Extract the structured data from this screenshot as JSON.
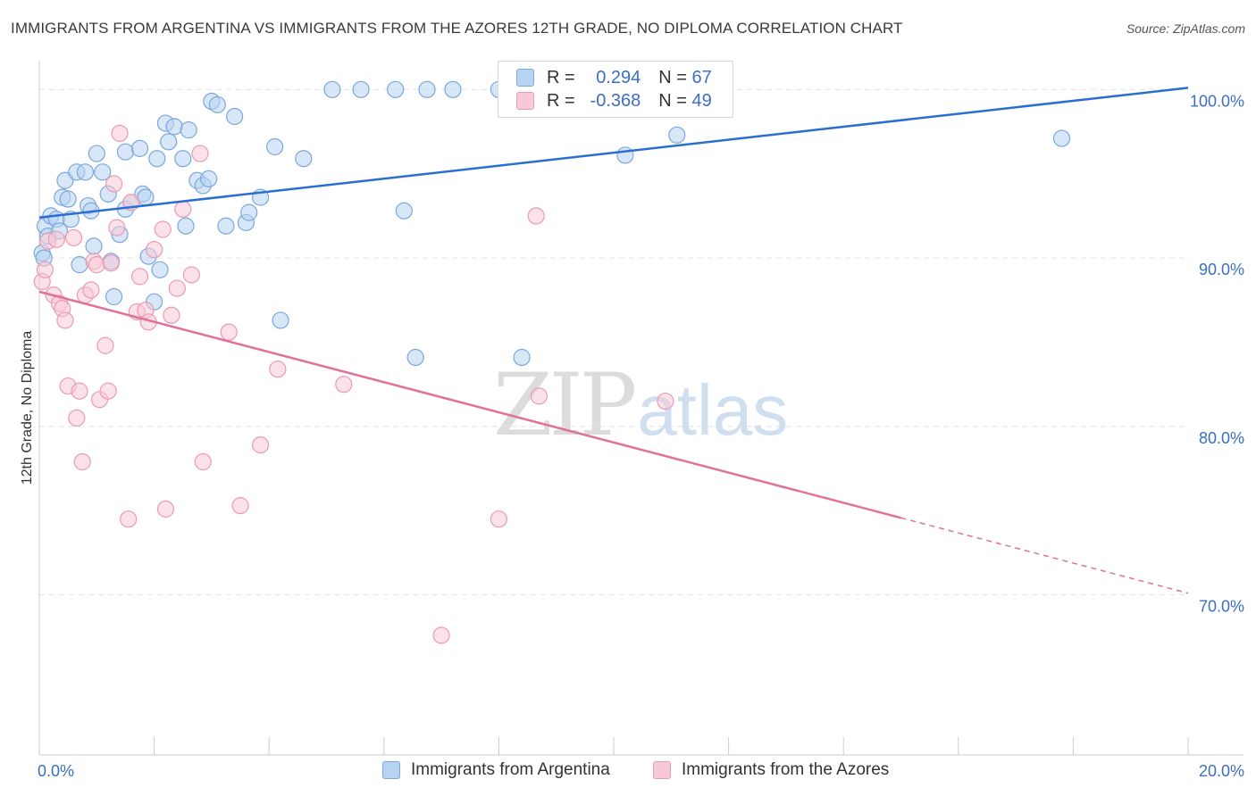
{
  "title": "IMMIGRANTS FROM ARGENTINA VS IMMIGRANTS FROM THE AZORES 12TH GRADE, NO DIPLOMA CORRELATION CHART",
  "source": "Source: ZipAtlas.com",
  "watermark": {
    "zip": "ZIP",
    "atlas": "atlas"
  },
  "legend": {
    "rows": [
      {
        "r_label": "R =",
        "r_value": "0.294",
        "n_label": "N =",
        "n_value": "67"
      },
      {
        "r_label": "R =",
        "r_value": "-0.368",
        "n_label": "N =",
        "n_value": "49"
      }
    ]
  },
  "colors": {
    "blue_fill": "#b8d3f2",
    "blue_stroke": "#7aa7dc",
    "blue_line": "#2a6fd0",
    "pink_fill": "#f8c8d6",
    "pink_stroke": "#eb9ab3",
    "pink_line": "#e0719a",
    "tick_label": "#3a6fc4",
    "grid": "#e2e2e2"
  },
  "chart_data": {
    "type": "scatter",
    "title": "IMMIGRANTS FROM ARGENTINA VS IMMIGRANTS FROM THE AZORES 12TH GRADE, NO DIPLOMA CORRELATION CHART",
    "xlabel": "",
    "ylabel": "12th Grade, No Diploma",
    "xlim": [
      0,
      20
    ],
    "ylim": [
      60.5,
      101.5
    ],
    "x_tick_labels": [
      {
        "value": 0,
        "label": "0.0%"
      },
      {
        "value": 20,
        "label": "20.0%"
      }
    ],
    "y_tick_labels": [
      {
        "value": 100,
        "label": "100.0%"
      },
      {
        "value": 90,
        "label": "90.0%"
      },
      {
        "value": 80,
        "label": "80.0%"
      },
      {
        "value": 70,
        "label": "70.0%"
      }
    ],
    "grid": true,
    "legend_position": "top-center",
    "series": [
      {
        "name": "Immigrants from Argentina",
        "r": 0.294,
        "n": 67,
        "trend": {
          "x0": 0,
          "y0": 92.4,
          "x1": 20,
          "y1": 100.1,
          "dashed_from": null
        },
        "points": [
          [
            0.05,
            90.3
          ],
          [
            0.08,
            90.0
          ],
          [
            0.1,
            91.9
          ],
          [
            0.15,
            91.3
          ],
          [
            0.2,
            92.5
          ],
          [
            0.3,
            92.3
          ],
          [
            0.35,
            91.6
          ],
          [
            0.4,
            93.6
          ],
          [
            0.45,
            94.6
          ],
          [
            0.5,
            93.5
          ],
          [
            0.55,
            92.3
          ],
          [
            0.65,
            95.1
          ],
          [
            0.7,
            89.6
          ],
          [
            0.8,
            95.1
          ],
          [
            0.85,
            93.1
          ],
          [
            0.9,
            92.8
          ],
          [
            0.95,
            90.7
          ],
          [
            1.0,
            96.2
          ],
          [
            1.1,
            95.1
          ],
          [
            1.2,
            93.8
          ],
          [
            1.25,
            89.8
          ],
          [
            1.3,
            87.7
          ],
          [
            1.4,
            91.4
          ],
          [
            1.5,
            96.3
          ],
          [
            1.5,
            92.9
          ],
          [
            1.6,
            93.3
          ],
          [
            1.75,
            96.5
          ],
          [
            1.8,
            93.8
          ],
          [
            1.85,
            93.6
          ],
          [
            1.9,
            90.1
          ],
          [
            2.0,
            87.4
          ],
          [
            2.05,
            95.9
          ],
          [
            2.1,
            89.3
          ],
          [
            2.2,
            98.0
          ],
          [
            2.25,
            96.9
          ],
          [
            2.35,
            97.8
          ],
          [
            2.5,
            95.9
          ],
          [
            2.55,
            91.9
          ],
          [
            2.6,
            97.6
          ],
          [
            2.75,
            94.6
          ],
          [
            2.85,
            94.3
          ],
          [
            2.95,
            94.7
          ],
          [
            3.0,
            99.3
          ],
          [
            3.1,
            99.1
          ],
          [
            3.25,
            91.9
          ],
          [
            3.4,
            98.4
          ],
          [
            3.6,
            92.1
          ],
          [
            3.65,
            92.7
          ],
          [
            3.85,
            93.6
          ],
          [
            4.1,
            96.6
          ],
          [
            4.2,
            86.3
          ],
          [
            4.6,
            95.9
          ],
          [
            5.1,
            100.0
          ],
          [
            5.6,
            100.0
          ],
          [
            6.2,
            100.0
          ],
          [
            6.35,
            92.8
          ],
          [
            6.55,
            84.1
          ],
          [
            6.75,
            100.0
          ],
          [
            7.2,
            100.0
          ],
          [
            8.0,
            100.0
          ],
          [
            8.35,
            100.0
          ],
          [
            8.4,
            84.1
          ],
          [
            9.25,
            100.0
          ],
          [
            9.6,
            100.0
          ],
          [
            10.2,
            96.1
          ],
          [
            11.1,
            97.3
          ],
          [
            17.8,
            97.1
          ]
        ]
      },
      {
        "name": "Immigrants from the Azores",
        "r": -0.368,
        "n": 49,
        "trend": {
          "x0": 0,
          "y0": 88.0,
          "x1": 20,
          "y1": 70.1,
          "dashed_from": 15.0
        },
        "points": [
          [
            0.05,
            88.6
          ],
          [
            0.1,
            89.3
          ],
          [
            0.15,
            91.0
          ],
          [
            0.25,
            87.8
          ],
          [
            0.3,
            91.1
          ],
          [
            0.35,
            87.3
          ],
          [
            0.4,
            87.0
          ],
          [
            0.45,
            86.3
          ],
          [
            0.5,
            82.4
          ],
          [
            0.6,
            91.2
          ],
          [
            0.65,
            80.5
          ],
          [
            0.7,
            82.1
          ],
          [
            0.75,
            77.9
          ],
          [
            0.8,
            87.8
          ],
          [
            0.9,
            88.1
          ],
          [
            0.95,
            89.8
          ],
          [
            1.0,
            89.6
          ],
          [
            1.05,
            81.6
          ],
          [
            1.15,
            84.8
          ],
          [
            1.2,
            82.1
          ],
          [
            1.25,
            89.7
          ],
          [
            1.3,
            94.4
          ],
          [
            1.35,
            91.8
          ],
          [
            1.4,
            97.4
          ],
          [
            1.55,
            74.5
          ],
          [
            1.6,
            93.3
          ],
          [
            1.7,
            86.8
          ],
          [
            1.75,
            88.9
          ],
          [
            1.85,
            86.9
          ],
          [
            1.9,
            86.2
          ],
          [
            2.0,
            90.5
          ],
          [
            2.15,
            91.7
          ],
          [
            2.2,
            75.1
          ],
          [
            2.3,
            86.6
          ],
          [
            2.4,
            88.2
          ],
          [
            2.5,
            92.9
          ],
          [
            2.65,
            89.0
          ],
          [
            2.8,
            96.2
          ],
          [
            2.85,
            77.9
          ],
          [
            3.3,
            85.6
          ],
          [
            3.5,
            75.3
          ],
          [
            3.85,
            78.9
          ],
          [
            4.15,
            83.4
          ],
          [
            5.3,
            82.5
          ],
          [
            7.0,
            67.6
          ],
          [
            8.0,
            74.5
          ],
          [
            8.65,
            92.5
          ],
          [
            8.7,
            81.8
          ],
          [
            10.9,
            81.5
          ]
        ]
      }
    ]
  }
}
